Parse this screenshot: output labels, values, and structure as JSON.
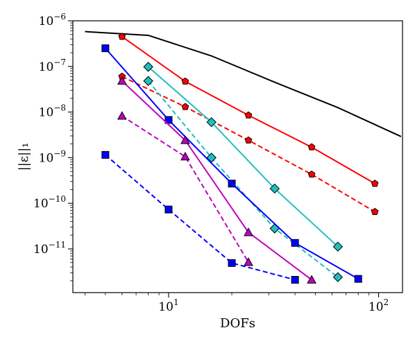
{
  "chart_data": {
    "type": "line",
    "xscale": "log",
    "yscale": "log",
    "xlabel": "DOFs",
    "ylabel": "||ε||₁",
    "xlim": [
      3.5,
      130
    ],
    "ylim": [
      1.1e-12,
      1e-06
    ],
    "x_ticks": [
      {
        "value": 10,
        "base": "10",
        "exp": "1"
      },
      {
        "value": 100,
        "base": "10",
        "exp": "2"
      }
    ],
    "y_ticks": [
      {
        "value": 1e-11,
        "base": "10",
        "exp": "−11"
      },
      {
        "value": 1e-10,
        "base": "10",
        "exp": "−10"
      },
      {
        "value": 1e-09,
        "base": "10",
        "exp": "−9"
      },
      {
        "value": 1e-08,
        "base": "10",
        "exp": "−8"
      },
      {
        "value": 1e-07,
        "base": "10",
        "exp": "−7"
      },
      {
        "value": 1e-06,
        "base": "10",
        "exp": "−6"
      }
    ],
    "series": [
      {
        "color": "#000000",
        "linestyle": "solid",
        "marker": "none",
        "x": [
          4,
          8,
          16,
          32,
          64,
          128
        ],
        "y": [
          5.8e-07,
          4.8e-07,
          1.7e-07,
          4.5e-08,
          1.25e-08,
          2.9e-09
        ]
      },
      {
        "color": "#ff0000",
        "linestyle": "solid",
        "marker": "pentagon",
        "x": [
          6,
          12,
          24,
          48,
          96
        ],
        "y": [
          4.5e-07,
          4.7e-08,
          8.5e-09,
          1.7e-09,
          2.7e-10
        ]
      },
      {
        "color": "#ff0000",
        "linestyle": "dashed",
        "marker": "pentagon",
        "x": [
          6,
          12,
          24,
          48,
          96
        ],
        "y": [
          6e-08,
          1.3e-08,
          2.4e-09,
          4.3e-10,
          6.5e-11
        ]
      },
      {
        "color": "#1fbfbf",
        "linestyle": "solid",
        "marker": "diamond",
        "x": [
          8,
          16,
          32,
          64
        ],
        "y": [
          9.8e-08,
          6e-09,
          2.1e-10,
          1.12e-11
        ]
      },
      {
        "color": "#1fbfbf",
        "linestyle": "dashed",
        "marker": "diamond",
        "x": [
          8,
          16,
          32,
          64
        ],
        "y": [
          4.8e-08,
          1e-09,
          2.8e-11,
          2.4e-12
        ]
      },
      {
        "color": "#0000ff",
        "linestyle": "solid",
        "marker": "square",
        "x": [
          5,
          10,
          20,
          40,
          80
        ],
        "y": [
          2.5e-07,
          6.7e-09,
          2.7e-10,
          1.35e-11,
          2.2e-12
        ]
      },
      {
        "color": "#0000ff",
        "linestyle": "dashed",
        "marker": "square",
        "x": [
          5,
          10,
          20,
          40
        ],
        "y": [
          1.15e-09,
          7.3e-11,
          4.9e-12,
          2.1e-12
        ]
      },
      {
        "color": "#bf00bf",
        "linestyle": "solid",
        "marker": "triangle",
        "x": [
          6,
          12,
          24,
          48
        ],
        "y": [
          4.8e-08,
          2.4e-09,
          2.3e-11,
          2.1e-12
        ]
      },
      {
        "color": "#bf00bf",
        "linestyle": "dashed",
        "marker": "triangle",
        "x": [
          6,
          12,
          24
        ],
        "y": [
          8.2e-09,
          1.05e-09,
          5.1e-12
        ]
      }
    ]
  }
}
